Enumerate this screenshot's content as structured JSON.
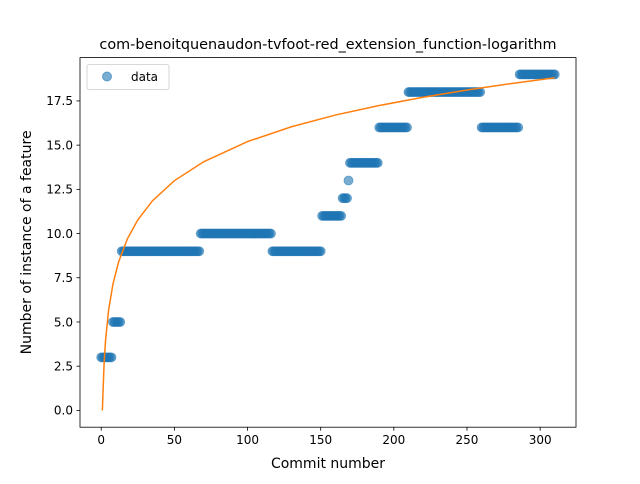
{
  "chart_data": {
    "type": "scatter",
    "title": "com-benoitquenaudon-tvfoot-red_extension_function-logarithm",
    "xlabel": "Commit number",
    "ylabel": "Number of instance of a feature",
    "xlim": [
      -14.5,
      324.5
    ],
    "ylim": [
      -0.95,
      19.95
    ],
    "x_ticks": [
      0,
      50,
      100,
      150,
      200,
      250,
      300
    ],
    "x_tick_labels": [
      "0",
      "50",
      "100",
      "150",
      "200",
      "250",
      "300"
    ],
    "y_ticks": [
      0,
      2.5,
      5,
      7.5,
      10,
      12.5,
      15,
      17.5
    ],
    "y_tick_labels": [
      "0.0",
      "2.5",
      "5.0",
      "7.5",
      "10.0",
      "12.5",
      "15.0",
      "17.5"
    ],
    "legend": {
      "placement": "upper-left",
      "entries": [
        {
          "label": "data",
          "marker": "circle"
        }
      ]
    },
    "series": [
      {
        "name": "data",
        "kind": "scatter",
        "color": "#1f77b4",
        "alpha": 0.6,
        "runs": [
          {
            "x_start": 0,
            "x_end": 7,
            "y": 3
          },
          {
            "x_start": 8,
            "x_end": 13,
            "y": 5
          },
          {
            "x_start": 14,
            "x_end": 67,
            "y": 9
          },
          {
            "x_start": 68,
            "x_end": 116,
            "y": 10
          },
          {
            "x_start": 117,
            "x_end": 150,
            "y": 9
          },
          {
            "x_start": 151,
            "x_end": 164,
            "y": 11
          },
          {
            "x_start": 165,
            "x_end": 168,
            "y": 12
          },
          {
            "x_start": 169,
            "x_end": 169,
            "y": 13
          },
          {
            "x_start": 170,
            "x_end": 189,
            "y": 14
          },
          {
            "x_start": 190,
            "x_end": 209,
            "y": 16
          },
          {
            "x_start": 210,
            "x_end": 259,
            "y": 18
          },
          {
            "x_start": 260,
            "x_end": 285,
            "y": 16
          },
          {
            "x_start": 286,
            "x_end": 310,
            "y": 19
          }
        ]
      },
      {
        "kind": "line",
        "color": "#ff7f0e",
        "function": "logarithmic",
        "x": [
          0.8,
          1,
          2,
          3,
          5,
          8,
          12,
          18,
          25,
          35,
          50,
          70,
          100,
          130,
          160,
          190,
          220,
          250,
          280,
          310
        ],
        "y": [
          0.0,
          0.53,
          2.73,
          4.01,
          5.64,
          7.14,
          8.43,
          9.72,
          10.77,
          11.85,
          12.99,
          14.06,
          15.2,
          16.04,
          16.7,
          17.24,
          17.71,
          18.12,
          18.48,
          18.81
        ]
      }
    ]
  }
}
